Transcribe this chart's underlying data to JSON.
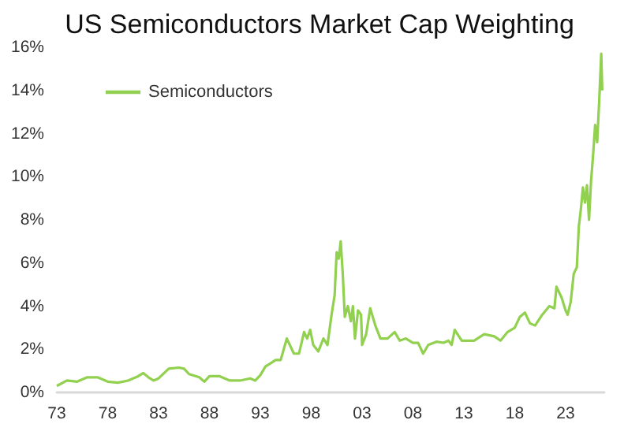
{
  "chart_data": {
    "type": "line",
    "title": "US Semiconductors Market Cap Weighting",
    "x": [
      1973.0,
      1974.0,
      1975.0,
      1976.0,
      1977.0,
      1978.0,
      1979.0,
      1980.0,
      1981.0,
      1981.5,
      1982.0,
      1982.5,
      1983.0,
      1984.0,
      1985.0,
      1985.5,
      1986.0,
      1987.0,
      1987.5,
      1988.0,
      1989.0,
      1990.0,
      1991.0,
      1992.0,
      1992.5,
      1993.0,
      1993.5,
      1994.0,
      1994.5,
      1995.0,
      1995.6,
      1996.3,
      1996.8,
      1997.0,
      1997.3,
      1997.6,
      1997.9,
      1998.2,
      1998.7,
      1999.2,
      1999.6,
      2000.0,
      2000.3,
      2000.5,
      2000.7,
      2000.9,
      2001.1,
      2001.3,
      2001.6,
      2001.9,
      2002.1,
      2002.3,
      2002.6,
      2002.9,
      2003.0,
      2003.4,
      2003.8,
      2004.3,
      2004.8,
      2005.5,
      2006.2,
      2006.7,
      2007.3,
      2008.0,
      2008.5,
      2009.0,
      2009.5,
      2010.3,
      2011.0,
      2011.5,
      2011.8,
      2012.1,
      2012.8,
      2014.0,
      2015.0,
      2016.0,
      2016.6,
      2017.3,
      2018.0,
      2018.5,
      2019.0,
      2019.5,
      2020.0,
      2020.7,
      2021.4,
      2021.9,
      2022.1,
      2022.6,
      2023.0,
      2023.2,
      2023.5,
      2023.8,
      2024.1,
      2024.3,
      2024.5,
      2024.7,
      2024.9,
      2025.1,
      2025.3,
      2025.5,
      2025.7,
      2025.9,
      2026.1,
      2026.3,
      2026.5,
      2026.6
    ],
    "series": [
      {
        "name": "Semiconductors",
        "color": "#92d050",
        "values": [
          0.3,
          0.55,
          0.5,
          0.7,
          0.7,
          0.5,
          0.45,
          0.55,
          0.75,
          0.9,
          0.7,
          0.55,
          0.65,
          1.1,
          1.15,
          1.1,
          0.85,
          0.7,
          0.5,
          0.75,
          0.75,
          0.55,
          0.55,
          0.65,
          0.55,
          0.8,
          1.2,
          1.35,
          1.5,
          1.5,
          2.5,
          1.8,
          1.8,
          2.2,
          2.8,
          2.5,
          2.9,
          2.2,
          1.9,
          2.5,
          2.2,
          3.6,
          4.5,
          6.5,
          6.2,
          7.0,
          5.5,
          3.5,
          4.0,
          3.3,
          4.0,
          2.5,
          3.8,
          3.6,
          2.2,
          2.7,
          3.9,
          3.1,
          2.5,
          2.5,
          2.8,
          2.4,
          2.5,
          2.3,
          2.3,
          1.8,
          2.2,
          2.35,
          2.3,
          2.4,
          2.2,
          2.9,
          2.4,
          2.4,
          2.7,
          2.6,
          2.4,
          2.8,
          3.0,
          3.5,
          3.7,
          3.2,
          3.1,
          3.6,
          4.0,
          3.9,
          4.9,
          4.4,
          3.8,
          3.6,
          4.2,
          5.5,
          5.8,
          7.7,
          8.5,
          9.5,
          8.8,
          9.6,
          8.0,
          9.8,
          11.0,
          12.4,
          11.6,
          13.5,
          15.7,
          14.0
        ]
      }
    ],
    "xlim": [
      1973,
      2026.8
    ],
    "xticks": [
      {
        "value": 1973,
        "label": "73"
      },
      {
        "value": 1978,
        "label": "78"
      },
      {
        "value": 1983,
        "label": "83"
      },
      {
        "value": 1988,
        "label": "88"
      },
      {
        "value": 1993,
        "label": "93"
      },
      {
        "value": 1998,
        "label": "98"
      },
      {
        "value": 2003,
        "label": "03"
      },
      {
        "value": 2008,
        "label": "08"
      },
      {
        "value": 2013,
        "label": "13"
      },
      {
        "value": 2018,
        "label": "18"
      },
      {
        "value": 2023,
        "label": "23"
      }
    ],
    "ylim": [
      0,
      16
    ],
    "yticks": [
      {
        "value": 0,
        "label": "0%"
      },
      {
        "value": 2,
        "label": "2%"
      },
      {
        "value": 4,
        "label": "4%"
      },
      {
        "value": 6,
        "label": "6%"
      },
      {
        "value": 8,
        "label": "8%"
      },
      {
        "value": 10,
        "label": "10%"
      },
      {
        "value": 12,
        "label": "12%"
      },
      {
        "value": 14,
        "label": "14%"
      },
      {
        "value": 16,
        "label": "16%"
      }
    ],
    "grid": false,
    "legend": "top left",
    "marker": "none",
    "line_style": "solid"
  }
}
